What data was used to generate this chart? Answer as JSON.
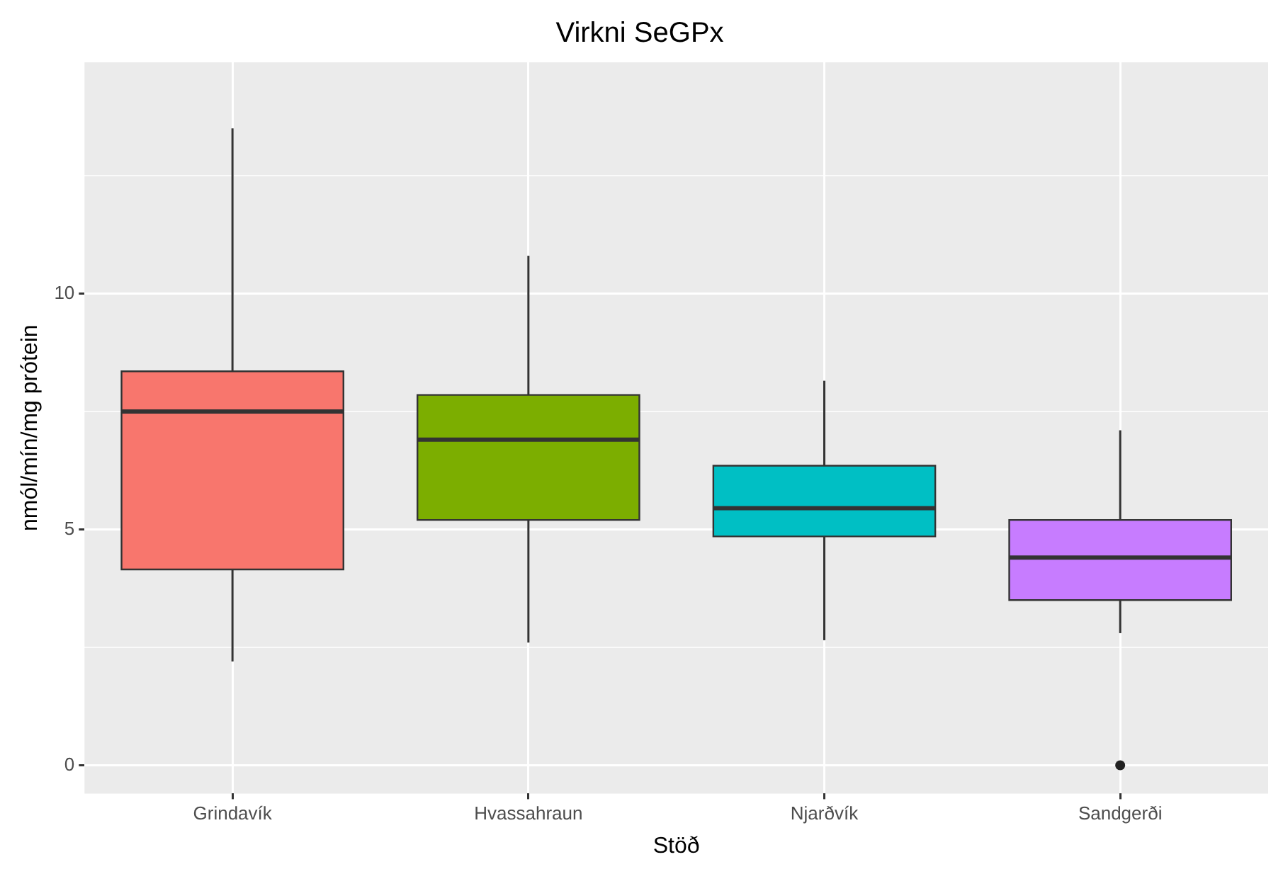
{
  "chart_data": {
    "type": "box",
    "title": "Virkni SeGPx",
    "xlabel": "Stöð",
    "ylabel": "nmól/mín/mg prótein",
    "categories": [
      "Grindavík",
      "Hvassahraun",
      "Njarðvík",
      "Sandgerði"
    ],
    "colors": [
      "#f8766d",
      "#7cae00",
      "#00bfc4",
      "#c77cff"
    ],
    "boxes": [
      {
        "low": 2.2,
        "q1": 4.15,
        "median": 7.5,
        "q3": 8.35,
        "high": 13.5
      },
      {
        "low": 2.6,
        "q1": 5.2,
        "median": 6.9,
        "q3": 7.85,
        "high": 10.8
      },
      {
        "low": 2.65,
        "q1": 4.85,
        "median": 5.45,
        "q3": 6.35,
        "high": 8.15
      },
      {
        "low": 2.8,
        "q1": 3.5,
        "median": 4.4,
        "q3": 5.2,
        "high": 7.1,
        "outliers": [
          0
        ]
      }
    ],
    "ylim": [
      -0.6,
      14.9
    ],
    "yticks": [
      {
        "value": 0,
        "label": "0"
      },
      {
        "value": 2.5,
        "label": null
      },
      {
        "value": 5,
        "label": "5"
      },
      {
        "value": 7.5,
        "label": null
      },
      {
        "value": 10,
        "label": "10"
      },
      {
        "value": 12.5,
        "label": null
      }
    ],
    "grid": true
  }
}
